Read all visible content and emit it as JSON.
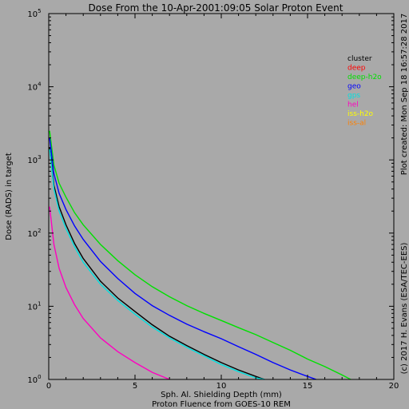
{
  "chart_data": {
    "type": "line",
    "title": "Dose From the 10-Apr-2001:09:05 Solar Proton Event",
    "xlabel": "Sph. Al. Shielding Depth (mm)",
    "xlabel2": "Proton Fluence from GOES-10 REM",
    "ylabel": "Dose (RADS) in target",
    "side_note_top": "Plot created: Mon Sep 18 16:57:28 2017",
    "side_note_bottom": "(c) 2017 H. Evans (ESA/TEC-EES)",
    "xlim": [
      0,
      20
    ],
    "ylim": [
      1,
      100000
    ],
    "yscale": "log",
    "grid": false,
    "legend_position": "top-right",
    "x_ticks": [
      0,
      5,
      10,
      15,
      20
    ],
    "x_tick_labels": [
      "0",
      "5",
      "10",
      "15",
      "20"
    ],
    "y_ticks": [
      1,
      10,
      100,
      1000,
      10000,
      100000
    ],
    "y_tick_base": [
      "10",
      "10",
      "10",
      "10",
      "10",
      "10"
    ],
    "y_tick_exp": [
      "0",
      "1",
      "2",
      "3",
      "4",
      "5"
    ],
    "series": [
      {
        "name": "cluster",
        "color": "#000000",
        "x": [
          0.05,
          0.3,
          0.6,
          1,
          1.5,
          2,
          3,
          4,
          5,
          6,
          7,
          8,
          9,
          10,
          11,
          12,
          12.5
        ],
        "y": [
          1500,
          450,
          230,
          130,
          72,
          45,
          22,
          13,
          8.5,
          5.6,
          3.9,
          2.9,
          2.2,
          1.7,
          1.35,
          1.1,
          1.0
        ]
      },
      {
        "name": "deep",
        "color": "#ff0000",
        "x": [
          15.5
        ],
        "y": [
          1.0
        ]
      },
      {
        "name": "deep-h2o",
        "color": "#00e000",
        "x": [
          0.05,
          0.3,
          0.6,
          1,
          1.5,
          2,
          3,
          4,
          5,
          6,
          7,
          8,
          9,
          10,
          11,
          12,
          13,
          14,
          15,
          16,
          17,
          17.5
        ],
        "y": [
          2500,
          850,
          480,
          310,
          190,
          130,
          70,
          42,
          27,
          18.5,
          13.5,
          10.2,
          8.0,
          6.4,
          5.1,
          4.1,
          3.2,
          2.5,
          1.9,
          1.5,
          1.15,
          1.0
        ]
      },
      {
        "name": "geo",
        "color": "#0000ff",
        "x": [
          0.05,
          0.3,
          0.6,
          1,
          1.5,
          2,
          3,
          4,
          5,
          6,
          7,
          8,
          9,
          10,
          11,
          12,
          13,
          14,
          15,
          15.5
        ],
        "y": [
          2000,
          650,
          350,
          210,
          125,
          82,
          41,
          24,
          15,
          10.2,
          7.5,
          5.7,
          4.5,
          3.6,
          2.8,
          2.2,
          1.7,
          1.35,
          1.1,
          1.0
        ]
      },
      {
        "name": "gps",
        "color": "#00e0e0",
        "x": [
          0.05,
          0.3,
          0.6,
          1,
          1.5,
          2,
          3,
          4,
          5,
          6,
          7,
          8,
          9,
          10,
          11,
          12,
          12.5
        ],
        "y": [
          1400,
          400,
          200,
          115,
          65,
          40,
          20,
          12,
          7.8,
          5.2,
          3.7,
          2.75,
          2.1,
          1.6,
          1.28,
          1.05,
          1.0
        ]
      },
      {
        "name": "hel",
        "color": "#ff00c0",
        "x": [
          0.05,
          0.3,
          0.6,
          1,
          1.5,
          2,
          3,
          4,
          5,
          6,
          7
        ],
        "y": [
          230,
          70,
          33,
          18,
          10.5,
          6.8,
          3.7,
          2.4,
          1.7,
          1.25,
          1.0
        ]
      },
      {
        "name": "iss-h2o",
        "color": "#ffff00",
        "x": [],
        "y": []
      },
      {
        "name": "iss-al",
        "color": "#ff8000",
        "x": [],
        "y": []
      }
    ]
  }
}
